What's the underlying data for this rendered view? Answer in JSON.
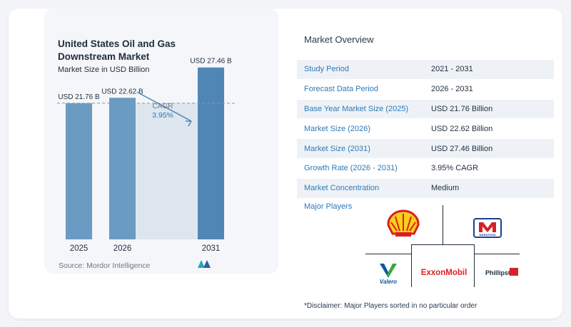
{
  "chart_data": {
    "type": "bar",
    "title": "United States Oil and Gas Downstream Market",
    "subtitle": "Market Size in USD Billion",
    "categories": [
      "2025",
      "2026",
      "2031"
    ],
    "values": [
      21.76,
      22.62,
      27.46
    ],
    "value_labels": [
      "USD 21.76 B",
      "USD 22.62 B",
      "USD 27.46 B"
    ],
    "cagr_label": "CAGR",
    "cagr_value": "3.95%",
    "ylim": [
      0,
      28
    ],
    "colors": {
      "bar": "#6a9bc3",
      "bar_dark": "#4f86b5",
      "highlight": "#dde6ef"
    },
    "source": "Source:  Mordor Intelligence"
  },
  "overview": {
    "title": "Market Overview",
    "rows": [
      {
        "key": "Study Period",
        "value": "2021 - 2031"
      },
      {
        "key": "Forecast Data Period",
        "value": "2026 - 2031"
      },
      {
        "key": "Base Year Market Size (2025)",
        "value": "USD 21.76 Billion"
      },
      {
        "key": "Market Size (2026)",
        "value": "USD 22.62 Billion"
      },
      {
        "key": "Market Size (2031)",
        "value": "USD 27.46 Billion"
      },
      {
        "key": "Growth Rate (2026 - 2031)",
        "value": "3.95% CAGR"
      },
      {
        "key": "Market Concentration",
        "value": "Medium"
      }
    ]
  },
  "players": {
    "title": "Major Players",
    "logos": [
      "Shell",
      "MARATHON",
      "Valero",
      "ExxonMobil",
      "Phillips66"
    ],
    "disclaimer": "*Disclaimer: Major Players sorted in no particular order"
  },
  "colors": {
    "accent": "#2e7ab8",
    "text": "#1f2d3d",
    "row_bg": "#eef2f7"
  }
}
